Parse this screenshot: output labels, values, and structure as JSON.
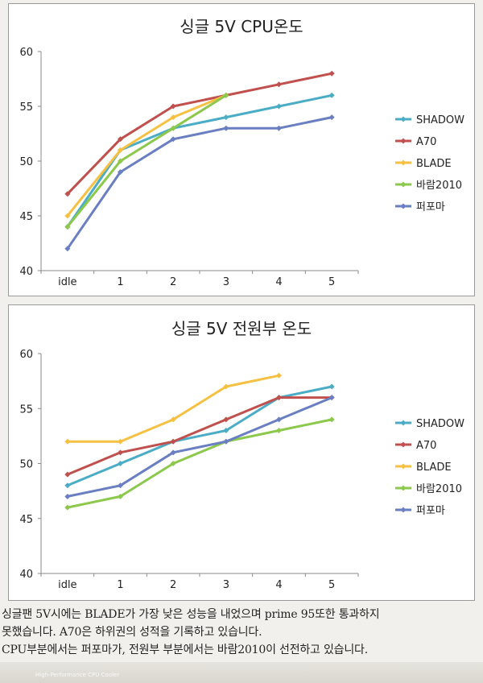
{
  "charts": [
    {
      "chart_data": {
        "type": "line",
        "title": "싱글 5V CPU온도",
        "categories": [
          "idle",
          "1",
          "2",
          "3",
          "4",
          "5"
        ],
        "ylim": [
          40,
          60
        ],
        "yticks": [
          40,
          45,
          50,
          55,
          60
        ],
        "grid": false,
        "legend_position": "right",
        "series": [
          {
            "name": "SHADOW",
            "color": "#4bacc6",
            "values": [
              44,
              51,
              53,
              54,
              55,
              56
            ]
          },
          {
            "name": "A70",
            "color": "#c0504d",
            "values": [
              47,
              52,
              55,
              56,
              57,
              58
            ]
          },
          {
            "name": "BLADE",
            "color": "#f6c142",
            "values": [
              45,
              51,
              54,
              56,
              null,
              null
            ]
          },
          {
            "name": "바람2010",
            "color": "#8cc84b",
            "values": [
              44,
              50,
              53,
              56,
              null,
              null
            ]
          },
          {
            "name": "퍼포마",
            "color": "#6a7fc1",
            "values": [
              42,
              49,
              52,
              53,
              53,
              54
            ]
          }
        ]
      }
    },
    {
      "chart_data": {
        "type": "line",
        "title": "싱글 5V 전원부 온도",
        "categories": [
          "idle",
          "1",
          "2",
          "3",
          "4",
          "5"
        ],
        "ylim": [
          40,
          60
        ],
        "yticks": [
          40,
          45,
          50,
          55,
          60
        ],
        "grid": false,
        "legend_position": "right",
        "series": [
          {
            "name": "SHADOW",
            "color": "#4bacc6",
            "values": [
              48,
              50,
              52,
              53,
              56,
              57
            ]
          },
          {
            "name": "A70",
            "color": "#c0504d",
            "values": [
              49,
              51,
              52,
              54,
              56,
              56
            ]
          },
          {
            "name": "BLADE",
            "color": "#f6c142",
            "values": [
              52,
              52,
              54,
              57,
              58,
              null
            ]
          },
          {
            "name": "바람2010",
            "color": "#8cc84b",
            "values": [
              46,
              47,
              50,
              52,
              53,
              54
            ]
          },
          {
            "name": "퍼포마",
            "color": "#6a7fc1",
            "values": [
              47,
              48,
              51,
              52,
              54,
              56
            ]
          }
        ]
      }
    }
  ],
  "caption": {
    "line1": "싱글팬 5V시에는 BLADE가 가장 낮은 성능을 내었으며 prime 95또한 통과하지",
    "line2": "못했습니다. A70은 하위권의 성적을 기록하고 있습니다.",
    "line3": "CPU부분에서는 퍼포마가, 전원부 부분에서는 바람2010이 선전하고 있습니다."
  },
  "footer": {
    "brand": "High-Performance CPU Cooler"
  }
}
